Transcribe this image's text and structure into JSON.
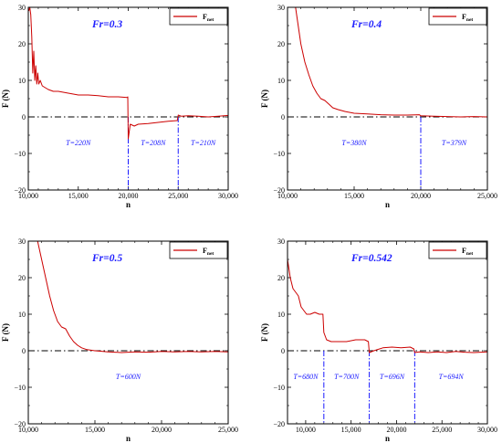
{
  "chart_data": [
    {
      "type": "line",
      "title": "Fr=0.3",
      "xlabel": "n",
      "ylabel": "F (N)",
      "xlim": [
        10000,
        30000
      ],
      "ylim": [
        -20,
        30
      ],
      "xticks": [
        10000,
        15000,
        20000,
        25000,
        30000
      ],
      "xtick_labels": [
        "10,000",
        "15,000",
        "20,000",
        "25,000",
        "30,000"
      ],
      "yticks": [
        -20,
        -10,
        0,
        10,
        20,
        30
      ],
      "ytick_labels": [
        "−20",
        "−10",
        "0",
        "10",
        "20",
        "30"
      ],
      "legend": "top-right",
      "series": [
        {
          "name": "F",
          "name_sub": "net",
          "color": "#cc0000",
          "x": [
            10050,
            10150,
            10250,
            10350,
            10450,
            10550,
            10650,
            10750,
            10850,
            10950,
            11050,
            11200,
            11400,
            11700,
            12000,
            12500,
            13000,
            14000,
            15000,
            16000,
            17000,
            18000,
            19000,
            19900,
            19950,
            20000,
            20200,
            20600,
            21000,
            22000,
            23000,
            24000,
            24900,
            25000,
            25300,
            26000,
            27000,
            28000,
            29000,
            30000
          ],
          "y": [
            29,
            30,
            28,
            22,
            12,
            18,
            10,
            14,
            9,
            12,
            9,
            10,
            8.5,
            8,
            7.5,
            7,
            7,
            6.5,
            6,
            6,
            5.8,
            5.5,
            5.5,
            5.3,
            5.5,
            -6,
            -2,
            -2.5,
            -2,
            -1.8,
            -1.5,
            -1.2,
            -1,
            0.5,
            0.2,
            0.3,
            0.2,
            0,
            0.2,
            0.4
          ]
        }
      ],
      "vlines": [
        20000,
        25000
      ],
      "hline": 0,
      "annotations": [
        {
          "text": "T=220N",
          "x": 15000,
          "y": -7
        },
        {
          "text": "T=208N",
          "x": 22500,
          "y": -7
        },
        {
          "text": "T=210N",
          "x": 27500,
          "y": -7
        }
      ]
    },
    {
      "type": "line",
      "title": "Fr=0.4",
      "xlabel": "n",
      "ylabel": "F (N)",
      "xlim": [
        10000,
        25000
      ],
      "ylim": [
        -20,
        30
      ],
      "xticks": [
        10000,
        15000,
        20000,
        25000
      ],
      "xtick_labels": [
        "10,000",
        "15,000",
        "20,000",
        "25,000"
      ],
      "yticks": [
        -20,
        -10,
        0,
        10,
        20,
        30
      ],
      "ytick_labels": [
        "−20",
        "−10",
        "0",
        "10",
        "20",
        "30"
      ],
      "legend": "top-right",
      "series": [
        {
          "name": "F",
          "name_sub": "net",
          "color": "#cc0000",
          "x": [
            10600,
            10800,
            11000,
            11300,
            11600,
            11900,
            12200,
            12500,
            12800,
            13100,
            13400,
            13800,
            14300,
            15000,
            16000,
            17000,
            18000,
            19000,
            19900,
            20000,
            21000,
            22000,
            23000,
            24000,
            25000
          ],
          "y": [
            30,
            25,
            20,
            15,
            11.5,
            8.5,
            6.5,
            5,
            4.5,
            3.5,
            2.5,
            2,
            1.5,
            1,
            0.8,
            0.6,
            0.5,
            0.5,
            0.6,
            0.3,
            0.2,
            0.1,
            0,
            0.1,
            0
          ]
        }
      ],
      "vlines": [
        20000
      ],
      "hline": 0,
      "annotations": [
        {
          "text": "T=380N",
          "x": 15000,
          "y": -7
        },
        {
          "text": "T=379N",
          "x": 22500,
          "y": -7
        }
      ]
    },
    {
      "type": "line",
      "title": "Fr=0.5",
      "xlabel": "n",
      "ylabel": "F (N)",
      "xlim": [
        10000,
        25000
      ],
      "ylim": [
        -20,
        30
      ],
      "xticks": [
        10000,
        15000,
        20000,
        25000
      ],
      "xtick_labels": [
        "10,000",
        "15,000",
        "20,000",
        "25,000"
      ],
      "yticks": [
        -20,
        -10,
        0,
        10,
        20,
        30
      ],
      "ytick_labels": [
        "−20",
        "−10",
        "0",
        "10",
        "20",
        "30"
      ],
      "legend": "top-right",
      "series": [
        {
          "name": "F",
          "name_sub": "net",
          "color": "#cc0000",
          "x": [
            10700,
            11000,
            11300,
            11600,
            11900,
            12200,
            12500,
            12800,
            13100,
            13400,
            13700,
            14000,
            14400,
            15000,
            16000,
            17000,
            18000,
            19000,
            20000,
            21000,
            22000,
            23000,
            24000,
            25000
          ],
          "y": [
            30,
            25,
            20,
            15,
            11,
            8,
            6.5,
            6,
            4,
            2.5,
            1.5,
            0.8,
            0.3,
            0,
            -0.3,
            -0.5,
            -0.3,
            -0.4,
            -0.2,
            -0.3,
            -0.2,
            -0.3,
            -0.2,
            -0.3
          ]
        }
      ],
      "vlines": [],
      "hline": 0,
      "annotations": [
        {
          "text": "T=600N",
          "x": 17500,
          "y": -7
        }
      ]
    },
    {
      "type": "line",
      "title": "Fr=0.542",
      "xlabel": "n",
      "ylabel": "F (N)",
      "xlim": [
        8000,
        30000
      ],
      "ylim": [
        -20,
        30
      ],
      "xticks": [
        10000,
        15000,
        20000,
        25000,
        30000
      ],
      "xtick_labels": [
        "10,000",
        "15,000",
        "20,000",
        "25,000",
        "30,000"
      ],
      "yticks": [
        -20,
        -10,
        0,
        10,
        20,
        30
      ],
      "ytick_labels": [
        "−20",
        "−10",
        "0",
        "10",
        "20",
        "30"
      ],
      "legend": "top-right",
      "series": [
        {
          "name": "F",
          "name_sub": "net",
          "color": "#cc0000",
          "x": [
            8000,
            8300,
            8600,
            8900,
            9200,
            9500,
            9800,
            10100,
            10500,
            11000,
            11500,
            11900,
            12000,
            12300,
            12800,
            13500,
            14500,
            15500,
            16500,
            16900,
            17000,
            17500,
            18500,
            19500,
            20500,
            21500,
            21900,
            22000,
            22500,
            23500,
            24500,
            25500,
            26500,
            27500,
            28500,
            30000
          ],
          "y": [
            25,
            20,
            17,
            16,
            15,
            12,
            11,
            10,
            10,
            10.5,
            10,
            10,
            5,
            3,
            2.5,
            2.5,
            2.5,
            3,
            3,
            2.5,
            -0.5,
            0,
            0.8,
            1,
            0.8,
            1,
            0.5,
            -0.5,
            -0.3,
            -0.5,
            -0.3,
            -0.5,
            -0.2,
            -0.4,
            -0.5,
            -0.3
          ]
        }
      ],
      "vlines": [
        12000,
        17000,
        22000
      ],
      "hline": 0,
      "annotations": [
        {
          "text": "T=680N",
          "x": 10000,
          "y": -7
        },
        {
          "text": "T=700N",
          "x": 14500,
          "y": -7
        },
        {
          "text": "T=696N",
          "x": 19500,
          "y": -7
        },
        {
          "text": "T=694N",
          "x": 26000,
          "y": -7
        }
      ]
    }
  ]
}
